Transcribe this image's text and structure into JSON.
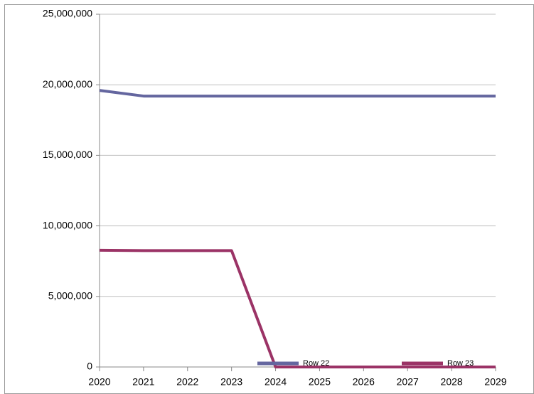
{
  "chart_data": {
    "type": "line",
    "categories": [
      "2020",
      "2021",
      "2022",
      "2023",
      "2024",
      "2025",
      "2026",
      "2027",
      "2028",
      "2029"
    ],
    "series": [
      {
        "name": "Row 22",
        "color": "#64669f",
        "values": [
          19600000,
          19200000,
          19200000,
          19200000,
          19200000,
          19200000,
          19200000,
          19200000,
          19200000,
          19200000
        ]
      },
      {
        "name": "Row 23",
        "color": "#9b3366",
        "values": [
          8270000,
          8250000,
          8250000,
          8250000,
          0,
          0,
          0,
          0,
          0,
          0
        ]
      }
    ],
    "ylim": [
      0,
      25000000
    ],
    "yticks": [
      0,
      {
        "value": 5000000,
        "label": "5,000,000"
      },
      {
        "value": 10000000,
        "label": "10,000,000"
      },
      {
        "value": 15000000,
        "label": "15,000,000"
      },
      {
        "value": 20000000,
        "label": "20,000,000"
      },
      {
        "value": 25000000,
        "label": "25,000,000"
      }
    ],
    "grid": true,
    "legend": "bottom"
  }
}
